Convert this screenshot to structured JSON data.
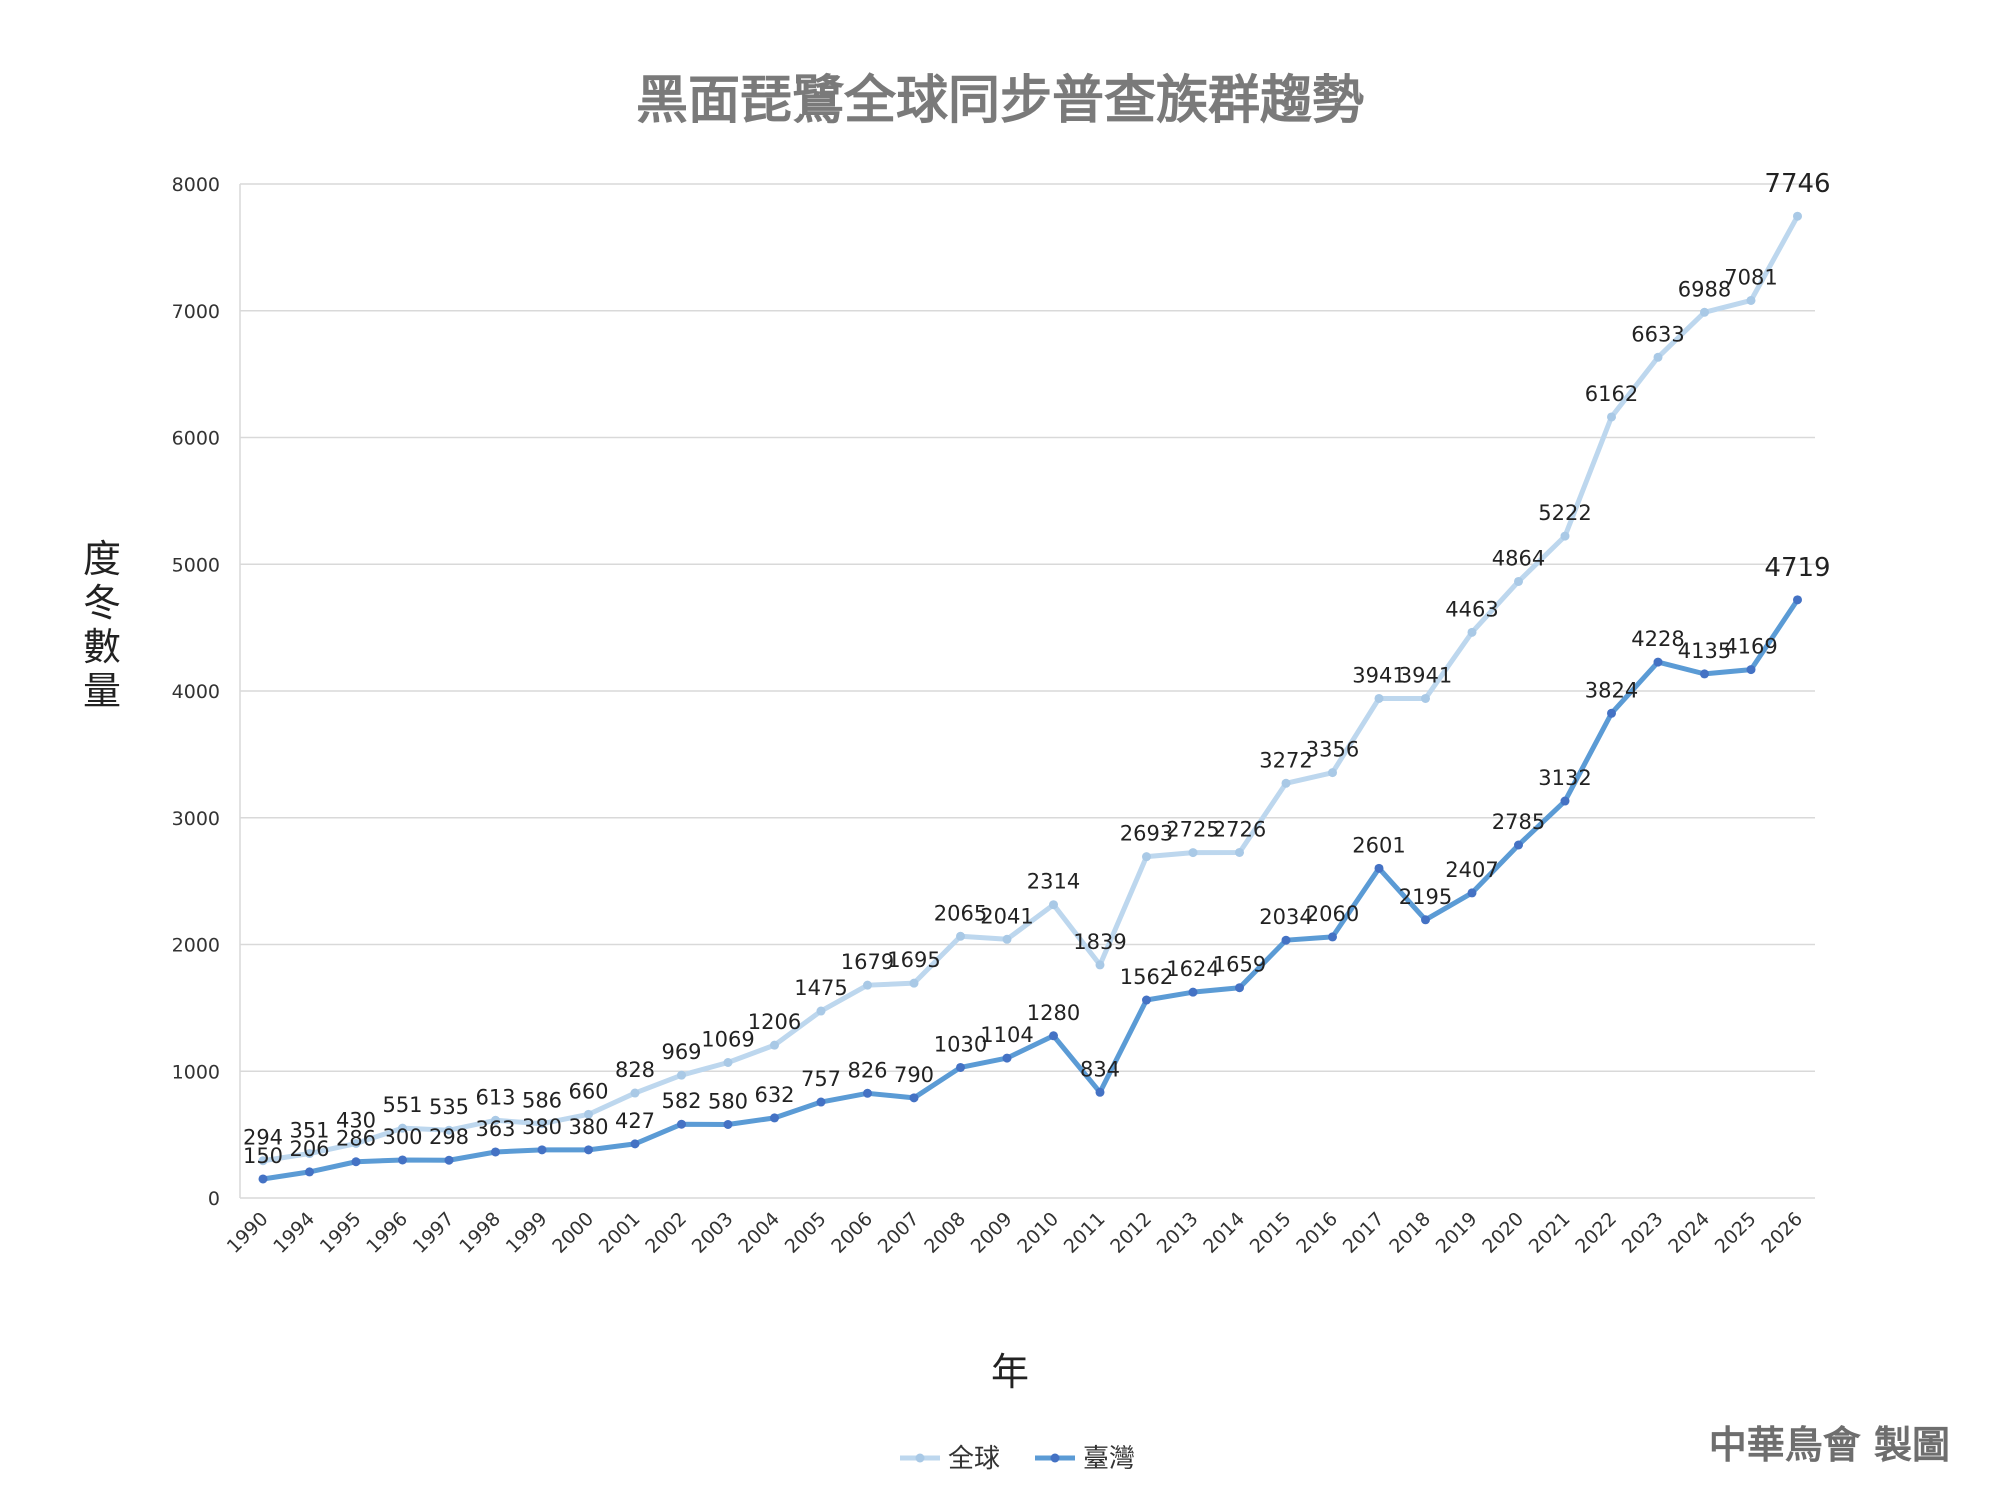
{
  "credit": "中華鳥會 製圖",
  "chart_data": {
    "type": "line",
    "title": "黑面琵鷺全球同步普查族群趨勢",
    "xlabel": "年",
    "ylabel": "度冬數量",
    "ylim": [
      0,
      8000
    ],
    "yticks": [
      0,
      1000,
      2000,
      3000,
      4000,
      5000,
      6000,
      7000,
      8000
    ],
    "grid": true,
    "legend_position": "bottom",
    "categories": [
      "1990",
      "1994",
      "1995",
      "1996",
      "1997",
      "1998",
      "1999",
      "2000",
      "2001",
      "2002",
      "2003",
      "2004",
      "2005",
      "2006",
      "2007",
      "2008",
      "2009",
      "2010",
      "2011",
      "2012",
      "2013",
      "2014",
      "2015",
      "2016",
      "2017",
      "2018",
      "2019",
      "2020",
      "2021",
      "2022",
      "2023",
      "2024",
      "2025",
      "2026"
    ],
    "series": [
      {
        "name": "全球",
        "color": "#bdd7ee",
        "values": [
          294,
          351,
          430,
          551,
          535,
          613,
          586,
          660,
          828,
          969,
          1069,
          1206,
          1475,
          1679,
          1695,
          2065,
          2041,
          2314,
          1839,
          2693,
          2725,
          2726,
          3272,
          3356,
          3941,
          3941,
          4463,
          4864,
          5222,
          6162,
          6633,
          6988,
          7081,
          7746
        ]
      },
      {
        "name": "臺灣",
        "color": "#5b9bd5",
        "values": [
          150,
          206,
          286,
          300,
          298,
          363,
          380,
          380,
          427,
          582,
          580,
          632,
          757,
          826,
          790,
          1030,
          1104,
          1280,
          834,
          1562,
          1624,
          1659,
          2034,
          2060,
          2601,
          2195,
          2407,
          2785,
          3132,
          3824,
          4228,
          4135,
          4169,
          4719
        ]
      }
    ]
  }
}
